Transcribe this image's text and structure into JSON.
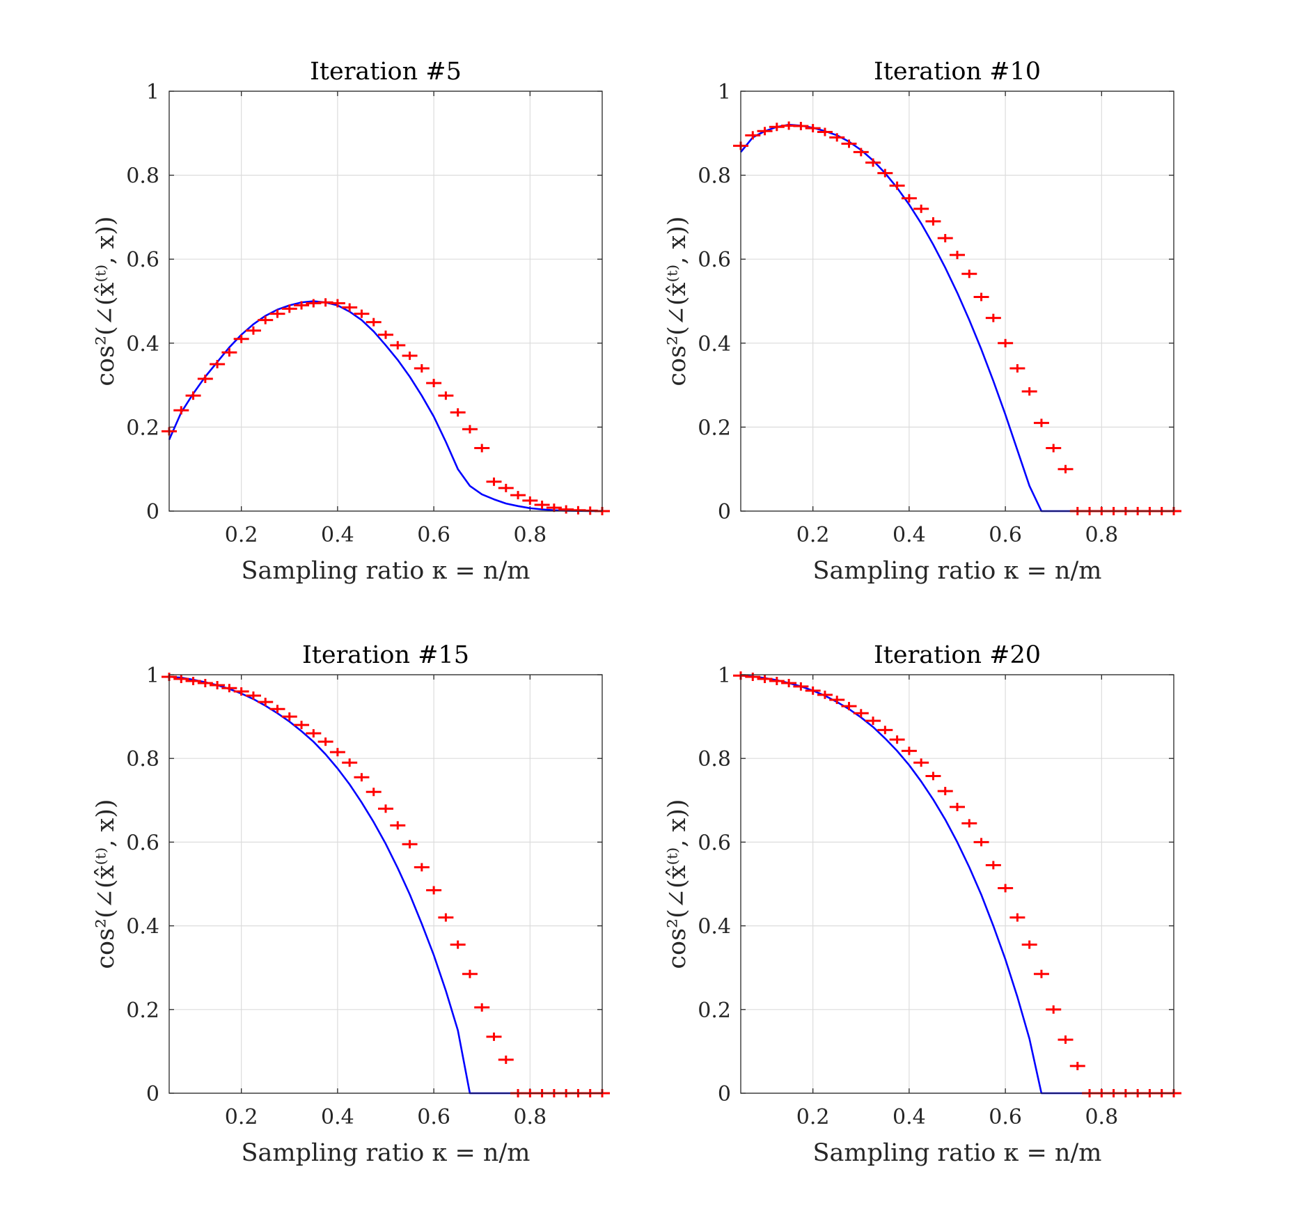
{
  "chart_data": [
    {
      "type": "line",
      "title": "Iteration #5",
      "xlabel": "Sampling ratio κ = n/m",
      "ylabel": "cos²(∠(x̂⁽ᵗ⁾, x))",
      "xlim": [
        0.05,
        0.95
      ],
      "ylim": [
        0,
        1
      ],
      "xticks": [
        "0.2",
        "0.4",
        "0.6",
        "0.8"
      ],
      "yticks": [
        "0",
        "0.2",
        "0.4",
        "0.6",
        "0.8",
        "1"
      ],
      "grid": true,
      "series": [
        {
          "style": "line",
          "color": "#0000ff",
          "x": [
            0.05,
            0.075,
            0.1,
            0.125,
            0.15,
            0.175,
            0.2,
            0.225,
            0.25,
            0.275,
            0.3,
            0.325,
            0.35,
            0.375,
            0.4,
            0.425,
            0.45,
            0.475,
            0.5,
            0.525,
            0.55,
            0.575,
            0.6,
            0.625,
            0.65,
            0.675,
            0.7,
            0.725,
            0.75,
            0.775,
            0.8,
            0.825,
            0.85,
            0.875,
            0.9,
            0.925,
            0.95
          ],
          "y": [
            0.17,
            0.235,
            0.28,
            0.32,
            0.355,
            0.39,
            0.42,
            0.445,
            0.465,
            0.48,
            0.49,
            0.497,
            0.5,
            0.497,
            0.49,
            0.475,
            0.455,
            0.428,
            0.395,
            0.36,
            0.32,
            0.275,
            0.225,
            0.165,
            0.1,
            0.06,
            0.04,
            0.028,
            0.018,
            0.012,
            0.007,
            0.004,
            0.002,
            0.001,
            0.0005,
            0.0002,
            0.0
          ]
        },
        {
          "style": "markers",
          "marker": "+",
          "color": "#ff0000",
          "x": [
            0.05,
            0.075,
            0.1,
            0.125,
            0.15,
            0.175,
            0.2,
            0.225,
            0.25,
            0.275,
            0.3,
            0.325,
            0.35,
            0.375,
            0.4,
            0.425,
            0.45,
            0.475,
            0.5,
            0.525,
            0.55,
            0.575,
            0.6,
            0.625,
            0.65,
            0.675,
            0.7,
            0.725,
            0.75,
            0.775,
            0.8,
            0.825,
            0.85,
            0.875,
            0.9,
            0.925,
            0.95
          ],
          "y": [
            0.19,
            0.24,
            0.275,
            0.315,
            0.35,
            0.378,
            0.41,
            0.43,
            0.455,
            0.47,
            0.482,
            0.49,
            0.495,
            0.497,
            0.495,
            0.485,
            0.47,
            0.45,
            0.42,
            0.395,
            0.37,
            0.34,
            0.305,
            0.275,
            0.235,
            0.195,
            0.15,
            0.07,
            0.055,
            0.038,
            0.025,
            0.015,
            0.008,
            0.004,
            0.002,
            0.001,
            0.0
          ]
        }
      ]
    },
    {
      "type": "line",
      "title": "Iteration #10",
      "xlabel": "Sampling ratio κ = n/m",
      "ylabel": "cos²(∠(x̂⁽ᵗ⁾, x))",
      "xlim": [
        0.05,
        0.95
      ],
      "ylim": [
        0,
        1
      ],
      "xticks": [
        "0.2",
        "0.4",
        "0.6",
        "0.8"
      ],
      "yticks": [
        "0",
        "0.2",
        "0.4",
        "0.6",
        "0.8",
        "1"
      ],
      "grid": true,
      "series": [
        {
          "style": "line",
          "color": "#0000ff",
          "x": [
            0.05,
            0.075,
            0.1,
            0.125,
            0.15,
            0.175,
            0.2,
            0.225,
            0.25,
            0.275,
            0.3,
            0.325,
            0.35,
            0.375,
            0.4,
            0.425,
            0.45,
            0.475,
            0.5,
            0.525,
            0.55,
            0.575,
            0.6,
            0.625,
            0.65,
            0.675,
            0.7,
            0.725,
            0.75,
            0.775,
            0.8,
            0.825,
            0.85,
            0.875,
            0.9,
            0.925,
            0.95
          ],
          "y": [
            0.855,
            0.89,
            0.905,
            0.915,
            0.92,
            0.918,
            0.913,
            0.905,
            0.895,
            0.88,
            0.86,
            0.835,
            0.805,
            0.77,
            0.73,
            0.685,
            0.635,
            0.58,
            0.52,
            0.455,
            0.385,
            0.31,
            0.23,
            0.145,
            0.06,
            0.0,
            0.0,
            0.0,
            0.0,
            0.0,
            0.0,
            0.0,
            0.0,
            0.0,
            0.0,
            0.0,
            0.0
          ]
        },
        {
          "style": "markers",
          "marker": "+",
          "color": "#ff0000",
          "x": [
            0.05,
            0.075,
            0.1,
            0.125,
            0.15,
            0.175,
            0.2,
            0.225,
            0.25,
            0.275,
            0.3,
            0.325,
            0.35,
            0.375,
            0.4,
            0.425,
            0.45,
            0.475,
            0.5,
            0.525,
            0.55,
            0.575,
            0.6,
            0.625,
            0.65,
            0.675,
            0.7,
            0.725,
            0.75,
            0.775,
            0.8,
            0.825,
            0.85,
            0.875,
            0.9,
            0.925,
            0.95
          ],
          "y": [
            0.87,
            0.895,
            0.905,
            0.915,
            0.918,
            0.917,
            0.912,
            0.903,
            0.89,
            0.875,
            0.855,
            0.83,
            0.805,
            0.775,
            0.745,
            0.72,
            0.69,
            0.65,
            0.61,
            0.565,
            0.51,
            0.46,
            0.4,
            0.34,
            0.285,
            0.21,
            0.15,
            0.1,
            0.0,
            0.0,
            0.0,
            0.0,
            0.0,
            0.0,
            0.0,
            0.0,
            0.0
          ]
        }
      ]
    },
    {
      "type": "line",
      "title": "Iteration #15",
      "xlabel": "Sampling ratio κ = n/m",
      "ylabel": "cos²(∠(x̂⁽ᵗ⁾, x))",
      "xlim": [
        0.05,
        0.95
      ],
      "ylim": [
        0,
        1
      ],
      "xticks": [
        "0.2",
        "0.4",
        "0.6",
        "0.8"
      ],
      "yticks": [
        "0",
        "0.2",
        "0.4",
        "0.6",
        "0.8",
        "1"
      ],
      "grid": true,
      "series": [
        {
          "style": "line",
          "color": "#0000ff",
          "x": [
            0.05,
            0.075,
            0.1,
            0.125,
            0.15,
            0.175,
            0.2,
            0.225,
            0.25,
            0.275,
            0.3,
            0.325,
            0.35,
            0.375,
            0.4,
            0.425,
            0.45,
            0.475,
            0.5,
            0.525,
            0.55,
            0.575,
            0.6,
            0.625,
            0.65,
            0.675,
            0.7,
            0.725,
            0.75,
            0.775,
            0.8,
            0.825,
            0.85,
            0.875,
            0.9,
            0.925,
            0.95
          ],
          "y": [
            0.995,
            0.993,
            0.988,
            0.982,
            0.975,
            0.966,
            0.955,
            0.942,
            0.926,
            0.908,
            0.888,
            0.865,
            0.84,
            0.81,
            0.776,
            0.738,
            0.695,
            0.648,
            0.596,
            0.538,
            0.475,
            0.405,
            0.33,
            0.245,
            0.15,
            0.0,
            0.0,
            0.0,
            0.0,
            0.0,
            0.0,
            0.0,
            0.0,
            0.0,
            0.0,
            0.0,
            0.0
          ]
        },
        {
          "style": "markers",
          "marker": "+",
          "color": "#ff0000",
          "x": [
            0.05,
            0.075,
            0.1,
            0.125,
            0.15,
            0.175,
            0.2,
            0.225,
            0.25,
            0.275,
            0.3,
            0.325,
            0.35,
            0.375,
            0.4,
            0.425,
            0.45,
            0.475,
            0.5,
            0.525,
            0.55,
            0.575,
            0.6,
            0.625,
            0.65,
            0.675,
            0.7,
            0.725,
            0.75,
            0.775,
            0.8,
            0.825,
            0.85,
            0.875,
            0.9,
            0.925,
            0.95
          ],
          "y": [
            0.995,
            0.99,
            0.985,
            0.98,
            0.975,
            0.968,
            0.96,
            0.95,
            0.935,
            0.918,
            0.9,
            0.88,
            0.86,
            0.84,
            0.815,
            0.79,
            0.755,
            0.72,
            0.68,
            0.64,
            0.595,
            0.54,
            0.485,
            0.42,
            0.355,
            0.285,
            0.205,
            0.135,
            0.08,
            0.0,
            0.0,
            0.0,
            0.0,
            0.0,
            0.0,
            0.0,
            0.0
          ]
        }
      ]
    },
    {
      "type": "line",
      "title": "Iteration #20",
      "xlabel": "Sampling ratio κ = n/m",
      "ylabel": "cos²(∠(x̂⁽ᵗ⁾, x))",
      "xlim": [
        0.05,
        0.95
      ],
      "ylim": [
        0,
        1
      ],
      "xticks": [
        "0.2",
        "0.4",
        "0.6",
        "0.8"
      ],
      "yticks": [
        "0",
        "0.2",
        "0.4",
        "0.6",
        "0.8",
        "1"
      ],
      "grid": true,
      "series": [
        {
          "style": "line",
          "color": "#0000ff",
          "x": [
            0.05,
            0.075,
            0.1,
            0.125,
            0.15,
            0.175,
            0.2,
            0.225,
            0.25,
            0.275,
            0.3,
            0.325,
            0.35,
            0.375,
            0.4,
            0.425,
            0.45,
            0.475,
            0.5,
            0.525,
            0.55,
            0.575,
            0.6,
            0.625,
            0.65,
            0.675,
            0.7,
            0.725,
            0.75,
            0.775,
            0.8,
            0.825,
            0.85,
            0.875,
            0.9,
            0.925,
            0.95
          ],
          "y": [
            0.998,
            0.996,
            0.992,
            0.987,
            0.98,
            0.972,
            0.962,
            0.95,
            0.935,
            0.918,
            0.898,
            0.875,
            0.848,
            0.818,
            0.784,
            0.745,
            0.702,
            0.654,
            0.6,
            0.54,
            0.474,
            0.4,
            0.32,
            0.23,
            0.13,
            0.0,
            0.0,
            0.0,
            0.0,
            0.0,
            0.0,
            0.0,
            0.0,
            0.0,
            0.0,
            0.0,
            0.0
          ]
        },
        {
          "style": "markers",
          "marker": "+",
          "color": "#ff0000",
          "x": [
            0.05,
            0.075,
            0.1,
            0.125,
            0.15,
            0.175,
            0.2,
            0.225,
            0.25,
            0.275,
            0.3,
            0.325,
            0.35,
            0.375,
            0.4,
            0.425,
            0.45,
            0.475,
            0.5,
            0.525,
            0.55,
            0.575,
            0.6,
            0.625,
            0.65,
            0.675,
            0.7,
            0.725,
            0.75,
            0.775,
            0.8,
            0.825,
            0.85,
            0.875,
            0.9,
            0.925,
            0.95
          ],
          "y": [
            0.998,
            0.995,
            0.99,
            0.985,
            0.98,
            0.972,
            0.962,
            0.952,
            0.94,
            0.925,
            0.908,
            0.89,
            0.868,
            0.845,
            0.818,
            0.79,
            0.758,
            0.722,
            0.684,
            0.645,
            0.6,
            0.545,
            0.49,
            0.42,
            0.355,
            0.285,
            0.2,
            0.128,
            0.065,
            0.0,
            0.0,
            0.0,
            0.0,
            0.0,
            0.0,
            0.0,
            0.0
          ]
        }
      ]
    }
  ]
}
